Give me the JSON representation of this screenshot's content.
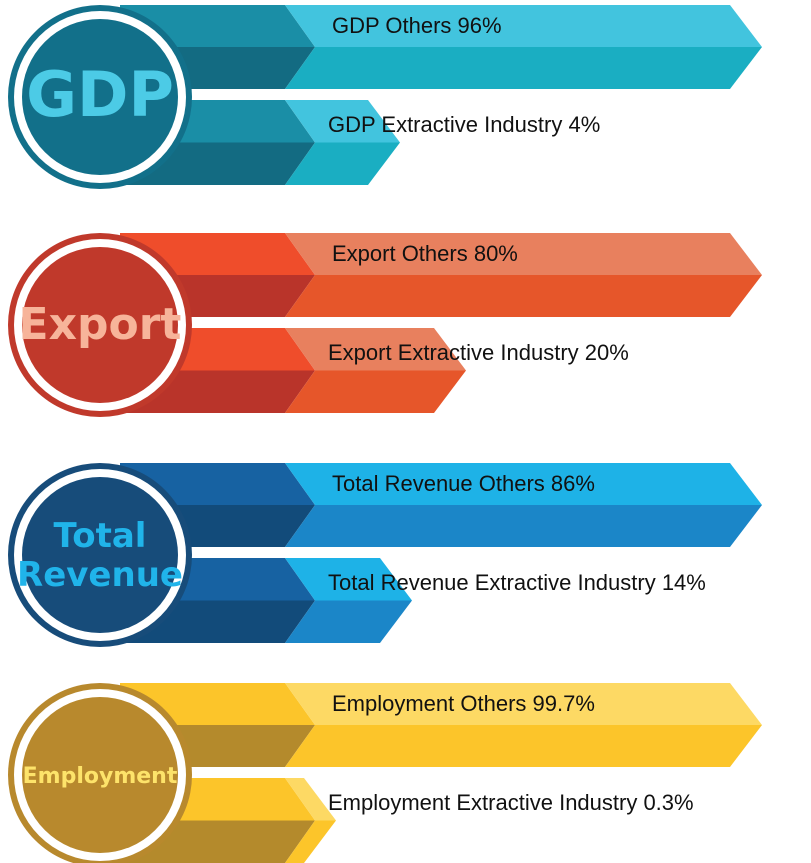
{
  "groups": [
    {
      "title_lines": [
        "GDP"
      ],
      "items": [
        {
          "label": "GDP Others 96%"
        },
        {
          "label": "GDP Extractive Industry 4%"
        }
      ]
    },
    {
      "title_lines": [
        "Export"
      ],
      "items": [
        {
          "label": "Export Others 80%"
        },
        {
          "label": "Export Extractive Industry 20%"
        }
      ]
    },
    {
      "title_lines": [
        "Total",
        "Revenue"
      ],
      "items": [
        {
          "label": "Total Revenue Others 86%"
        },
        {
          "label": "Total Revenue Extractive Industry 14%"
        }
      ]
    },
    {
      "title_lines": [
        "Employment"
      ],
      "items": [
        {
          "label": "Employment Others 99.7%"
        },
        {
          "label": "Employment Extractive Industry 0.3%"
        }
      ]
    }
  ]
}
